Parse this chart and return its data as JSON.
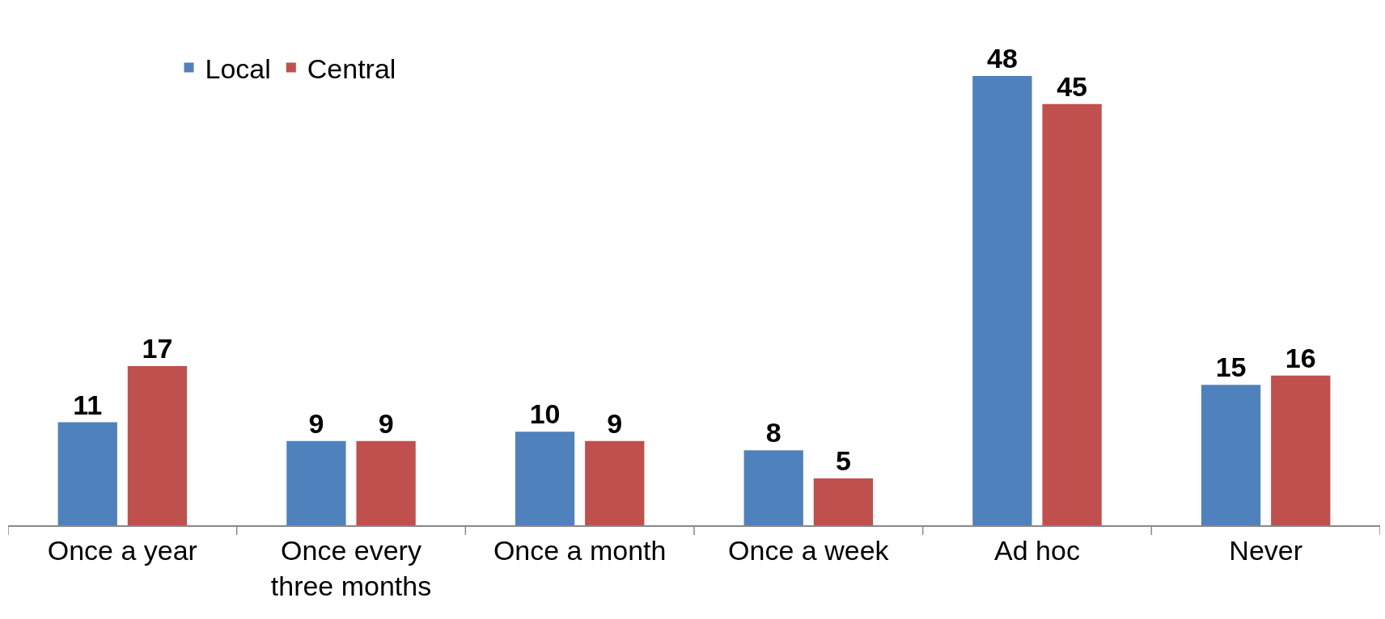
{
  "chart_data": {
    "type": "bar",
    "categories": [
      "Once a year",
      "Once every\nthree months",
      "Once a month",
      "Once a week",
      "Ad hoc",
      "Never"
    ],
    "series": [
      {
        "name": "Local",
        "color": "#4f81bd",
        "values": [
          11,
          9,
          10,
          8,
          48,
          15
        ]
      },
      {
        "name": "Central",
        "color": "#c0504d",
        "values": [
          17,
          9,
          9,
          5,
          45,
          16
        ]
      }
    ],
    "data_labels": true,
    "legend": "top left"
  }
}
